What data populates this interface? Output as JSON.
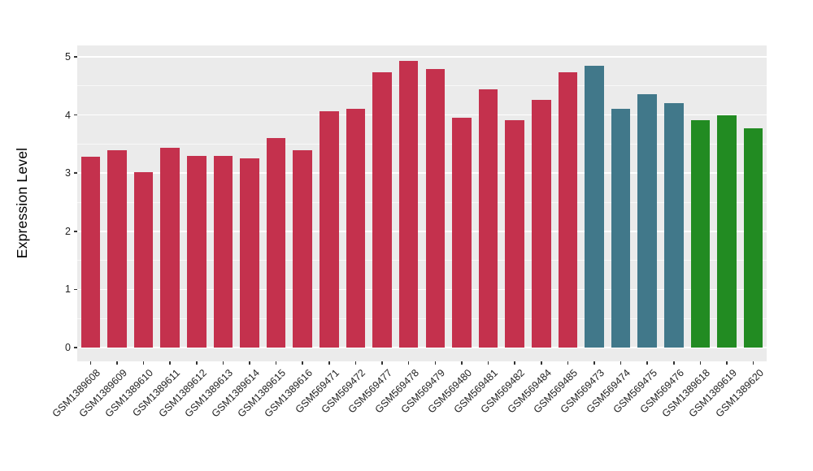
{
  "chart_data": {
    "type": "bar",
    "title": "",
    "xlabel": "",
    "ylabel": "Expression Level",
    "ylim": [
      -0.2,
      5.2
    ],
    "yticks": [
      0,
      1,
      2,
      3,
      4,
      5
    ],
    "ytick_labels": [
      "0",
      "1",
      "2",
      "3",
      "4",
      "5"
    ],
    "minor_gridlines": [
      0.5,
      1.5,
      2.5,
      3.5,
      4.5
    ],
    "grid": "on",
    "legend": "none",
    "panel_bg": "#EBEBEB",
    "grid_color": "#FFFFFF",
    "categories": [
      "GSM1389608",
      "GSM1389609",
      "GSM1389610",
      "GSM1389611",
      "GSM1389612",
      "GSM1389613",
      "GSM1389614",
      "GSM1389615",
      "GSM1389616",
      "GSM569471",
      "GSM569472",
      "GSM569477",
      "GSM569478",
      "GSM569479",
      "GSM569480",
      "GSM569481",
      "GSM569482",
      "GSM569484",
      "GSM569485",
      "GSM569473",
      "GSM569474",
      "GSM569475",
      "GSM569476",
      "GSM1389618",
      "GSM1389619",
      "GSM1389620"
    ],
    "values": [
      3.28,
      3.39,
      3.01,
      3.43,
      3.29,
      3.29,
      3.25,
      3.6,
      3.39,
      4.06,
      4.11,
      4.73,
      4.93,
      4.79,
      3.95,
      4.44,
      3.91,
      4.26,
      4.74,
      4.84,
      4.1,
      4.36,
      4.2,
      3.91,
      4.0,
      3.77
    ],
    "groups": [
      "red",
      "red",
      "red",
      "red",
      "red",
      "red",
      "red",
      "red",
      "red",
      "red",
      "red",
      "red",
      "red",
      "red",
      "red",
      "red",
      "red",
      "red",
      "red",
      "teal",
      "teal",
      "teal",
      "teal",
      "green",
      "green",
      "green"
    ],
    "group_colors": {
      "red": "#C4314D",
      "teal": "#41788A",
      "green": "#228B22"
    }
  }
}
